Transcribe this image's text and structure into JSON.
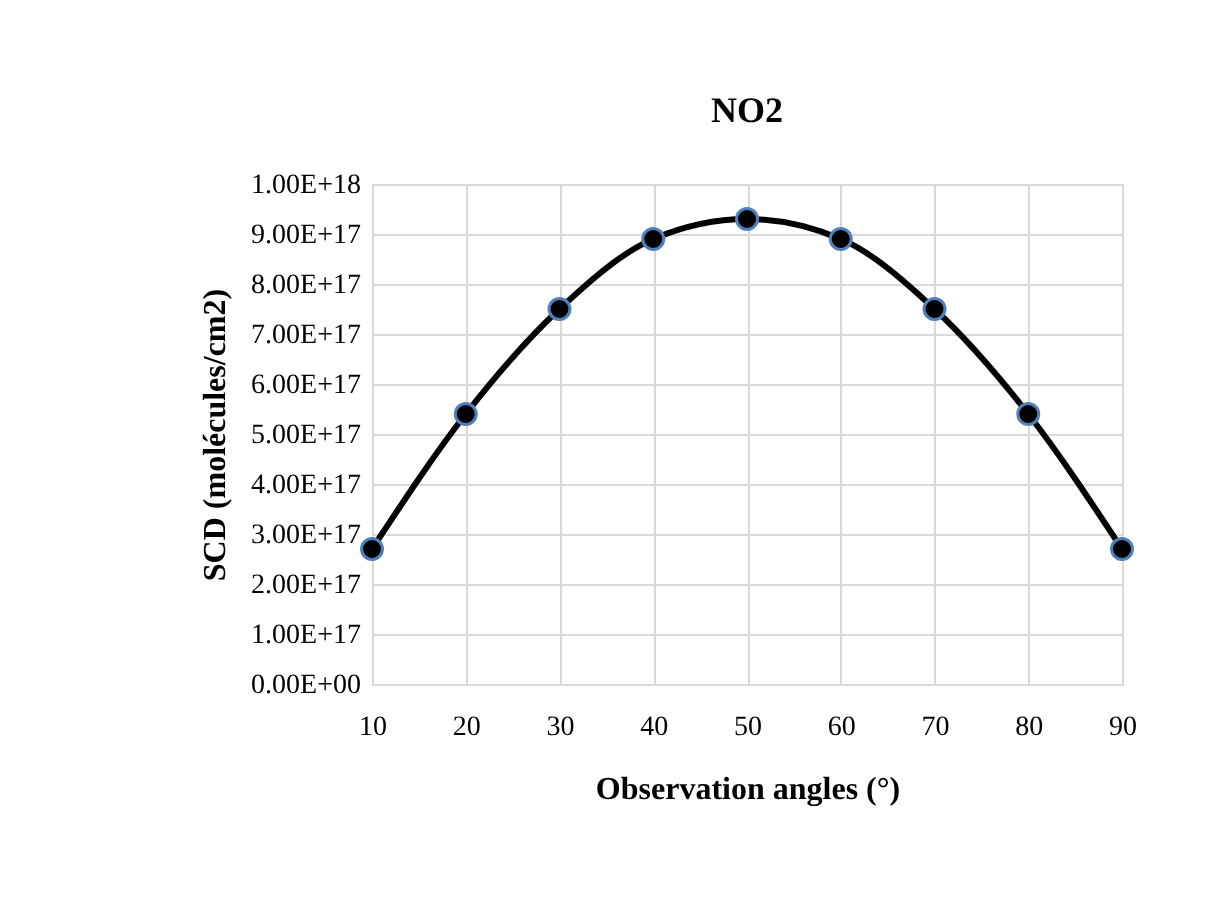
{
  "chart_data": {
    "type": "line",
    "title": "NO2",
    "xlabel": "Observation angles (°)",
    "ylabel": "SCD (molécules/cm2)",
    "x": [
      10,
      20,
      30,
      40,
      50,
      60,
      70,
      80,
      90
    ],
    "series": [
      {
        "color": "#000000",
        "values": [
          2.7e+17,
          5.4e+17,
          7.5e+17,
          8.9e+17,
          9.3e+17,
          8.9e+17,
          7.5e+17,
          5.4e+17,
          2.7e+17
        ]
      }
    ],
    "xlim": [
      10,
      90
    ],
    "xticks": [
      10,
      20,
      30,
      40,
      50,
      60,
      70,
      80,
      90
    ],
    "ylim": [
      0,
      1e+18
    ],
    "yticks": [
      {
        "value": 0,
        "label": "0.00E+00"
      },
      {
        "value": 1e+17,
        "label": "1.00E+17"
      },
      {
        "value": 2e+17,
        "label": "2.00E+17"
      },
      {
        "value": 3e+17,
        "label": "3.00E+17"
      },
      {
        "value": 4e+17,
        "label": "4.00E+17"
      },
      {
        "value": 5e+17,
        "label": "5.00E+17"
      },
      {
        "value": 6e+17,
        "label": "6.00E+17"
      },
      {
        "value": 7e+17,
        "label": "7.00E+17"
      },
      {
        "value": 8e+17,
        "label": "8.00E+17"
      },
      {
        "value": 9e+17,
        "label": "9.00E+17"
      },
      {
        "value": 1e+18,
        "label": "1.00E+18"
      }
    ],
    "grid": true,
    "marker": "circle",
    "line_style": "solid"
  }
}
